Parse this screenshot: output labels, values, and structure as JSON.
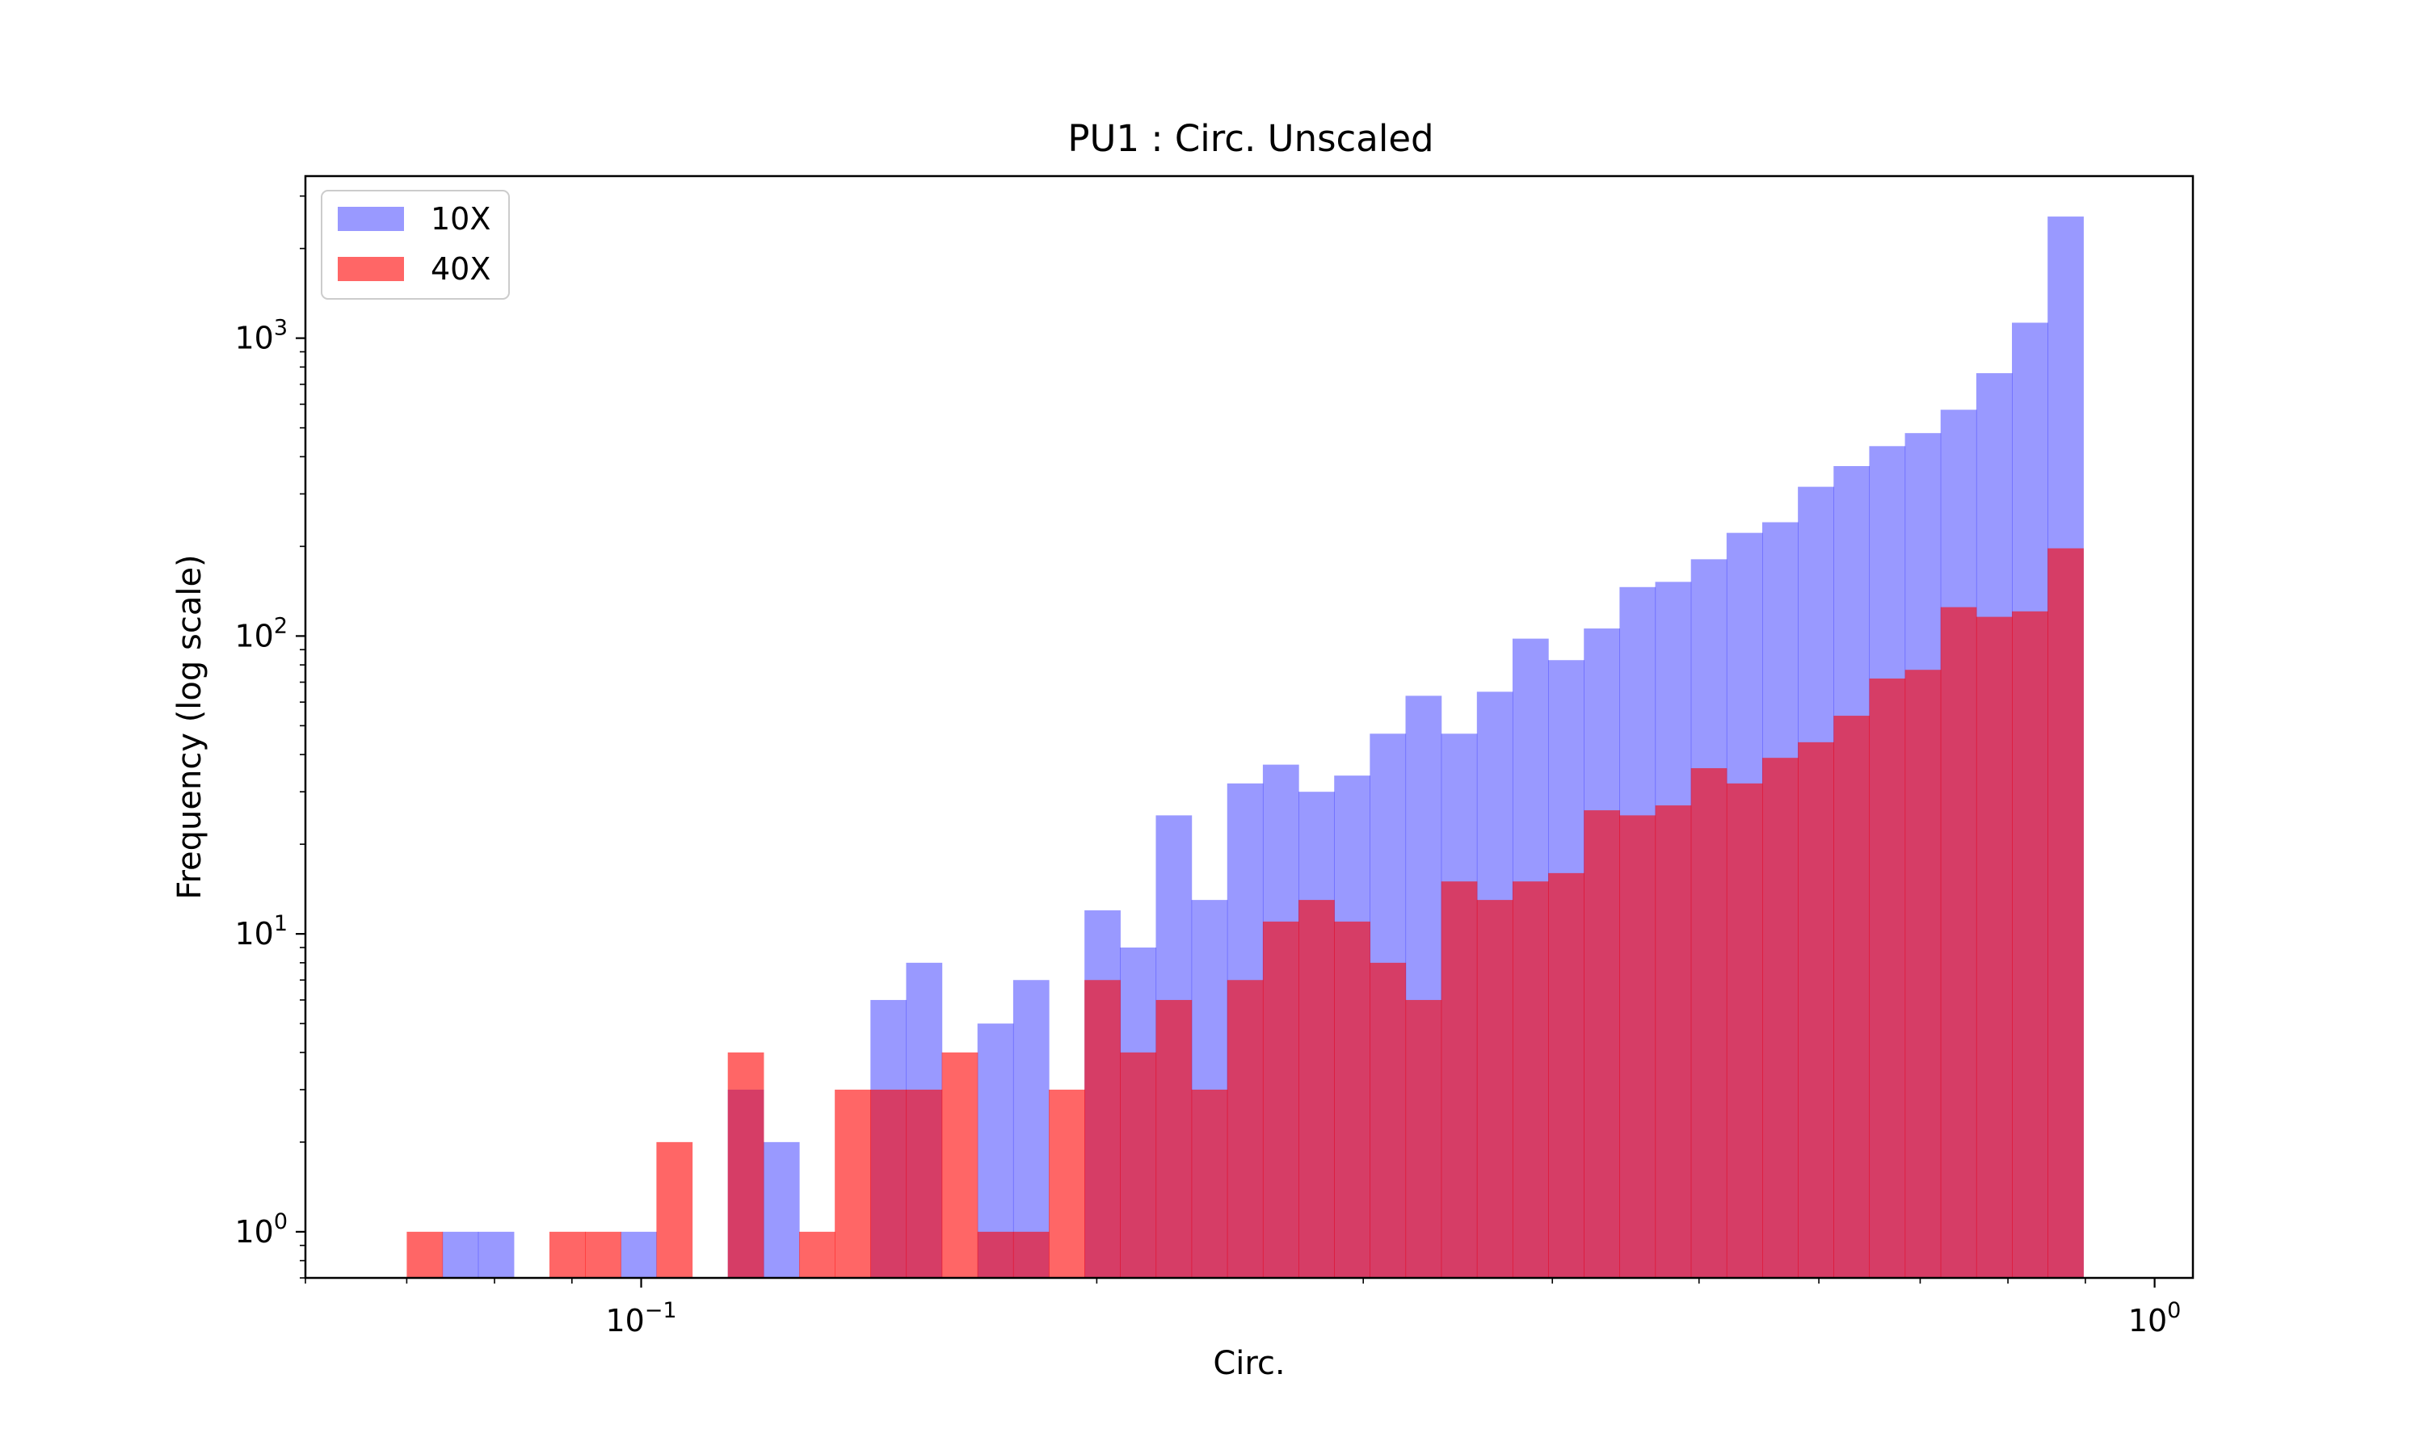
{
  "chart_data": {
    "type": "bar",
    "title": "PU1 : Circ. Unscaled",
    "xlabel": "Circ.",
    "ylabel": "Frequency (log scale)",
    "xscale": "log",
    "yscale": "log",
    "xlim": [
      0.06,
      1.06
    ],
    "ylim": [
      0.7,
      3500
    ],
    "legend_position": "top-left",
    "x_ticks": [
      {
        "value": 0.1,
        "base": "10",
        "exp": "−1"
      },
      {
        "value": 1,
        "base": "10",
        "exp": "0"
      }
    ],
    "y_ticks": [
      {
        "value": 1,
        "base": "10",
        "exp": "0"
      },
      {
        "value": 10,
        "base": "10",
        "exp": "1"
      },
      {
        "value": 100,
        "base": "10",
        "exp": "2"
      },
      {
        "value": 1000,
        "base": "10",
        "exp": "3"
      }
    ],
    "bins": {
      "start": 0.07,
      "end": 1.0,
      "count": 49
    },
    "series": [
      {
        "name": "10X",
        "color": "#0000ff",
        "opacity": 0.4,
        "values": [
          0,
          1,
          1,
          0,
          0,
          0,
          1,
          0,
          0,
          3,
          2,
          0,
          0,
          6,
          8,
          0,
          5,
          7,
          0,
          12,
          9,
          25,
          13,
          32,
          37,
          30,
          34,
          47,
          63,
          47,
          65,
          98,
          83,
          106,
          146,
          152,
          181,
          222,
          241,
          317,
          372,
          434,
          480,
          575,
          763,
          1127,
          2560,
          0,
          0
        ]
      },
      {
        "name": "40X",
        "color": "#ff0000",
        "opacity": 0.6,
        "values": [
          1,
          0,
          0,
          0,
          1,
          1,
          0,
          2,
          0,
          4,
          0,
          1,
          3,
          3,
          3,
          4,
          1,
          1,
          3,
          7,
          4,
          6,
          3,
          7,
          11,
          13,
          11,
          8,
          6,
          15,
          13,
          15,
          16,
          26,
          25,
          27,
          36,
          32,
          39,
          44,
          54,
          72,
          77,
          125,
          116,
          121,
          197,
          0,
          0
        ]
      }
    ]
  }
}
